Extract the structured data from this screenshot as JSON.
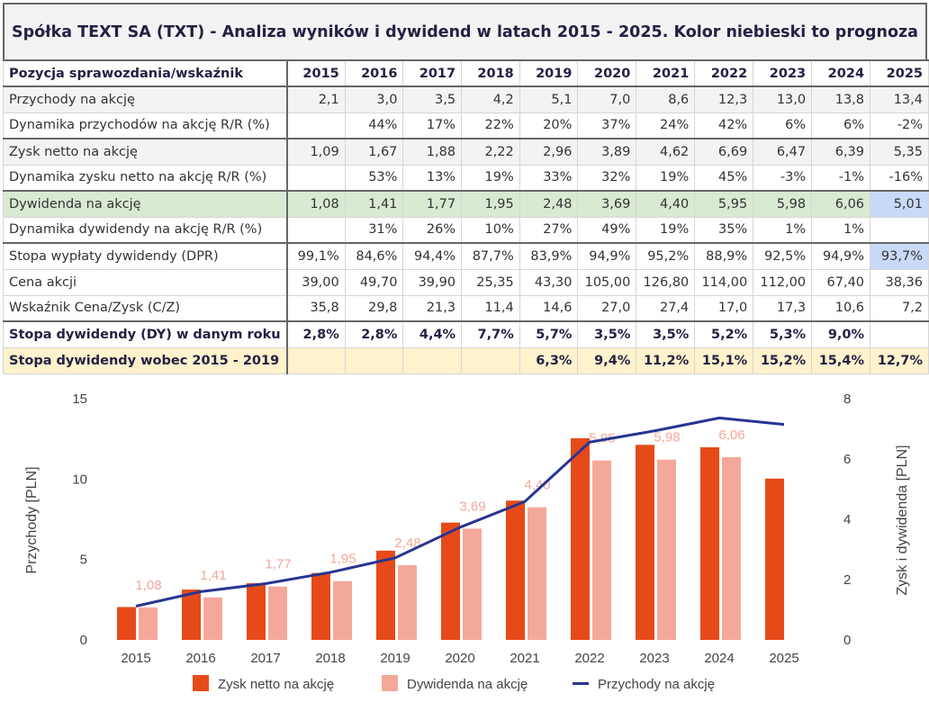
{
  "title": "Spółka TEXT SA (TXT) - Analiza wyników i dywidend w latach 2015 - 2025. Kolor niebieski to prognoza",
  "table": {
    "header_label": "Pozycja sprawozdania/wskaźnik",
    "years": [
      "2015",
      "2016",
      "2017",
      "2018",
      "2019",
      "2020",
      "2021",
      "2022",
      "2023",
      "2024",
      "2025"
    ],
    "rows": [
      {
        "label": "Przychody na akcję",
        "values": [
          "2,1",
          "3,0",
          "3,5",
          "4,2",
          "5,1",
          "7,0",
          "8,6",
          "12,3",
          "13,0",
          "13,8",
          "13,4"
        ]
      },
      {
        "label": "Dynamika przychodów na akcję R/R (%)",
        "values": [
          "",
          "44%",
          "17%",
          "22%",
          "20%",
          "37%",
          "24%",
          "42%",
          "6%",
          "6%",
          "-2%"
        ]
      },
      {
        "label": "Zysk netto na akcję",
        "values": [
          "1,09",
          "1,67",
          "1,88",
          "2,22",
          "2,96",
          "3,89",
          "4,62",
          "6,69",
          "6,47",
          "6,39",
          "5,35"
        ]
      },
      {
        "label": "Dynamika zysku netto na akcję R/R (%)",
        "values": [
          "",
          "53%",
          "13%",
          "19%",
          "33%",
          "32%",
          "19%",
          "45%",
          "-3%",
          "-1%",
          "-16%"
        ]
      },
      {
        "label": "Dywidenda na akcję",
        "values": [
          "1,08",
          "1,41",
          "1,77",
          "1,95",
          "2,48",
          "3,69",
          "4,40",
          "5,95",
          "5,98",
          "6,06",
          "5,01"
        ]
      },
      {
        "label": "Dynamika dywidendy na akcję R/R (%)",
        "values": [
          "",
          "31%",
          "26%",
          "10%",
          "27%",
          "49%",
          "19%",
          "35%",
          "1%",
          "1%",
          ""
        ]
      },
      {
        "label": "Stopa wypłaty dywidendy (DPR)",
        "values": [
          "99,1%",
          "84,6%",
          "94,4%",
          "87,7%",
          "83,9%",
          "94,9%",
          "95,2%",
          "88,9%",
          "92,5%",
          "94,9%",
          "93,7%"
        ]
      },
      {
        "label": "Cena akcji",
        "values": [
          "39,00",
          "49,70",
          "39,90",
          "25,35",
          "43,30",
          "105,00",
          "126,80",
          "114,00",
          "112,00",
          "67,40",
          "38,36"
        ]
      },
      {
        "label": "Wskaźnik Cena/Zysk (C/Z)",
        "values": [
          "35,8",
          "29,8",
          "21,3",
          "11,4",
          "14,6",
          "27,0",
          "27,4",
          "17,0",
          "17,3",
          "10,6",
          "7,2"
        ]
      },
      {
        "label": "Stopa dywidendy (DY) w danym roku",
        "values": [
          "2,8%",
          "2,8%",
          "4,4%",
          "7,7%",
          "5,7%",
          "3,5%",
          "3,5%",
          "5,2%",
          "5,3%",
          "9,0%",
          ""
        ]
      },
      {
        "label": "Stopa dywidendy wobec 2015 - 2019",
        "values": [
          "",
          "",
          "",
          "",
          "6,3%",
          "9,4%",
          "11,2%",
          "15,1%",
          "15,2%",
          "15,4%",
          "12,7%"
        ]
      }
    ],
    "colors": {
      "forecast": "#c9daf8",
      "dividend_row": "#d9ead3",
      "summary_row": "#fff2cc"
    }
  },
  "chart_data": {
    "type": "bar",
    "categories": [
      "2015",
      "2016",
      "2017",
      "2018",
      "2019",
      "2020",
      "2021",
      "2022",
      "2023",
      "2024",
      "2025"
    ],
    "series": [
      {
        "name": "Zysk netto na akcję",
        "type": "bar",
        "axis": "right",
        "color": "#e64a19",
        "values": [
          1.09,
          1.67,
          1.88,
          2.22,
          2.96,
          3.89,
          4.62,
          6.69,
          6.47,
          6.39,
          5.35
        ]
      },
      {
        "name": "Dywidenda na akcję",
        "type": "bar",
        "axis": "right",
        "color": "#f4a89a",
        "values": [
          1.08,
          1.41,
          1.77,
          1.95,
          2.48,
          3.69,
          4.4,
          5.95,
          5.98,
          6.06,
          null
        ],
        "data_labels": [
          "1,08",
          "1,41",
          "1,77",
          "1,95",
          "2,48",
          "3,69",
          "4,40",
          "5,95",
          "5,98",
          "6,06",
          ""
        ]
      },
      {
        "name": "Przychody na akcję",
        "type": "line",
        "axis": "left",
        "color": "#283593",
        "values": [
          2.1,
          3.0,
          3.5,
          4.2,
          5.1,
          7.0,
          8.6,
          12.3,
          13.0,
          13.8,
          13.4
        ]
      }
    ],
    "ylabel_left": "Przychody [PLN]",
    "ylim_left": [
      0,
      15
    ],
    "yticks_left": [
      "0",
      "5",
      "10",
      "15"
    ],
    "ylabel_right": "Zysk i dywidenda [PLN]",
    "ylim_right": [
      0,
      8
    ],
    "yticks_right": [
      "0",
      "2",
      "4",
      "6",
      "8"
    ],
    "legend": "bottom",
    "grid": false
  }
}
